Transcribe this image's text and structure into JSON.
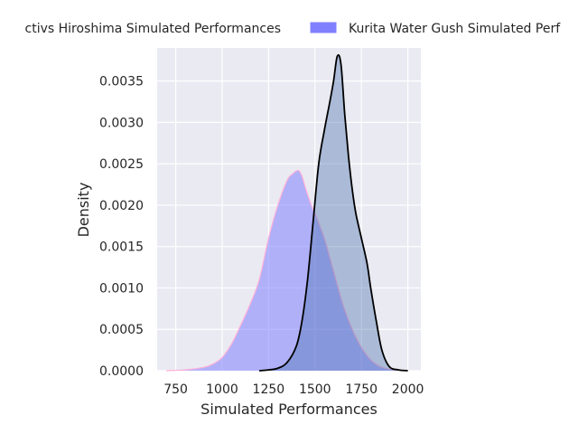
{
  "chart_data": {
    "type": "area",
    "chart_kind": "kde-density",
    "xlabel": "Simulated Performances",
    "ylabel": "Density",
    "xlim": [
      650,
      2070
    ],
    "ylim": [
      0,
      0.0039
    ],
    "grid": true,
    "legend_placement": "top-center, outside plot, clipped at both edges",
    "x_ticks": [
      "750",
      "1000",
      "1250",
      "1500",
      "1750",
      "2000"
    ],
    "y_ticks": [
      "0.0000",
      "0.0005",
      "0.0010",
      "0.0015",
      "0.0020",
      "0.0025",
      "0.0030",
      "0.0035"
    ],
    "series": [
      {
        "name": "Dynactivs Hiroshima Simulated Performances",
        "legend_visible_text": "ctivs Hiroshima Simulated Performances",
        "fill_color": "#8080ff",
        "line_color": "#ffb0d8",
        "x": [
          700,
          800,
          900,
          950,
          1000,
          1050,
          1100,
          1150,
          1200,
          1250,
          1300,
          1350,
          1380,
          1410,
          1430,
          1450,
          1480,
          1500,
          1550,
          1600,
          1650,
          1700,
          1750,
          1800,
          1850,
          1900,
          1950,
          2000
        ],
        "y": [
          0.0,
          1e-05,
          4e-05,
          8e-05,
          0.00016,
          0.00032,
          0.00055,
          0.0008,
          0.0011,
          0.0016,
          0.002,
          0.0023,
          0.00238,
          0.00242,
          0.00235,
          0.0022,
          0.002,
          0.0019,
          0.0016,
          0.0012,
          0.0008,
          0.0005,
          0.00028,
          0.00013,
          5e-05,
          2e-05,
          5e-06,
          0.0
        ]
      },
      {
        "name": "Kurita Water Gush Simulated Performances",
        "legend_visible_text": "Kurita Water Gush Simulated Perf",
        "fill_color": "#4c72b0",
        "line_color": "#000000",
        "x": [
          1200,
          1250,
          1300,
          1350,
          1400,
          1430,
          1460,
          1490,
          1520,
          1550,
          1580,
          1600,
          1620,
          1640,
          1660,
          1680,
          1700,
          1720,
          1750,
          1780,
          1800,
          1830,
          1860,
          1900,
          1950,
          2000
        ],
        "y": [
          0.0,
          1e-05,
          3e-05,
          0.0001,
          0.0003,
          0.0006,
          0.0011,
          0.0018,
          0.0025,
          0.0029,
          0.00325,
          0.0035,
          0.0038,
          0.0037,
          0.0031,
          0.0026,
          0.0022,
          0.0019,
          0.0016,
          0.0013,
          0.001,
          0.0006,
          0.00025,
          5e-05,
          1e-05,
          0.0
        ]
      }
    ]
  }
}
